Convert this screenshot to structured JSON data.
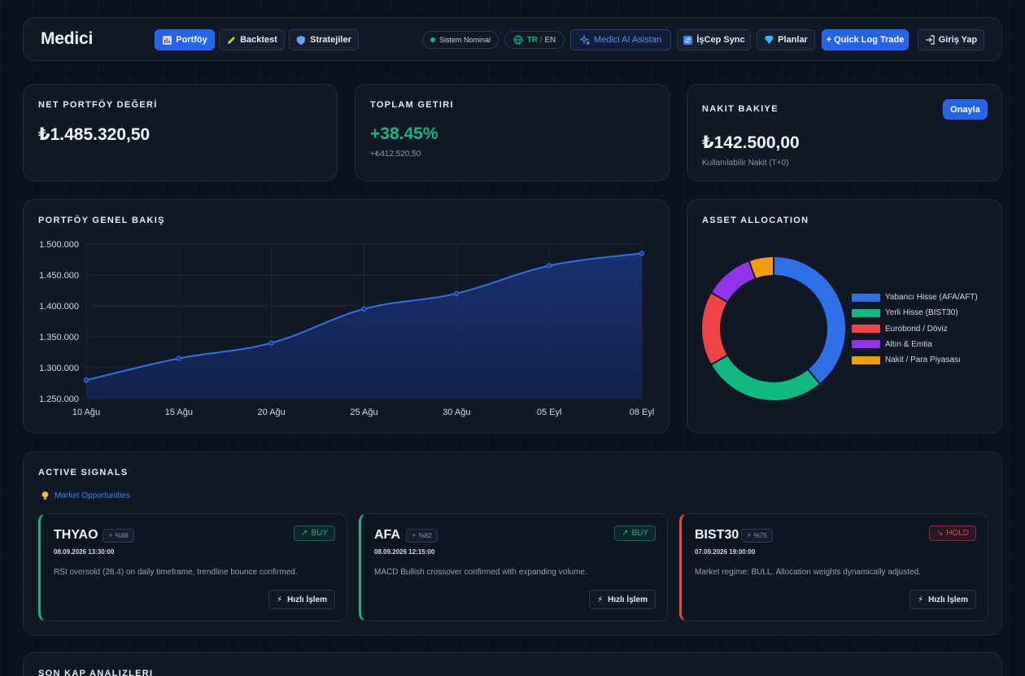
{
  "nav": {
    "brand": "Medici",
    "tabs": [
      {
        "label": "Portföy",
        "icon": "chart-icon"
      },
      {
        "label": "Backtest",
        "icon": "pencil-icon"
      },
      {
        "label": "Stratejiler",
        "icon": "shield-icon"
      }
    ],
    "status": "Sistem Nominal",
    "lang_tr": "TR",
    "lang_sep": " / ",
    "lang_en": "EN",
    "ai": "Medici AI Asistan",
    "sync": "İşCep Sync",
    "plans": "Planlar",
    "quick_log": "+ Quick Log Trade",
    "login": "Giriş Yap"
  },
  "kpi": {
    "net_label": "NET PORTFÖY DEĞERİ",
    "net_value": "₺1.485.320,50",
    "return_label": "TOPLAM GETIRI",
    "return_value": "+38.45%",
    "return_sub": "+₺412.520,50",
    "cash_label": "NAKIT BAKIYE",
    "cash_value": "₺142.500,00",
    "cash_sub": "Kullanılabilir Nakit (T+0)",
    "approve": "Onayla"
  },
  "overview": {
    "title": "PORTFÖY GENEL BAKIŞ"
  },
  "allocation": {
    "title": "ASSET ALLOCATION"
  },
  "signals": {
    "title": "ACTIVE SIGNALS",
    "subtitle": "Market Opportunities",
    "quick_label": "Hızlı İşlem",
    "items": [
      {
        "symbol": "THYAO",
        "confidence": "%88",
        "action": "BUY",
        "date": "08.09.2026 13:30:00",
        "desc": "RSI oversold (28.4) on daily timeframe, trendline bounce confirmed."
      },
      {
        "symbol": "AFA",
        "confidence": "%82",
        "action": "BUY",
        "date": "08.09.2026 12:15:00",
        "desc": "MACD Bullish crossover confirmed with expanding volume."
      },
      {
        "symbol": "BIST30",
        "confidence": "%75",
        "action": "HOLD",
        "date": "07.09.2026 19:00:00",
        "desc": "Market regime: BULL. Allocation weights dynamically adjusted."
      }
    ]
  },
  "kap": {
    "title": "SON KAP ANALIZLERI"
  },
  "colors": {
    "accent": "#2563eb",
    "positive": "#10b981",
    "negative": "#ef4444",
    "line": "#3b6fe0"
  },
  "chart_data": [
    {
      "type": "area",
      "title": "",
      "xlabel": "",
      "ylabel": "",
      "x": [
        "10 Ağu",
        "15 Ağu",
        "20 Ağu",
        "25 Ağu",
        "30 Ağu",
        "05 Eyl",
        "08 Eyl"
      ],
      "y": [
        1280000,
        1315000,
        1340000,
        1395000,
        1420000,
        1465000,
        1485000
      ],
      "y_ticks": [
        "1.500.000",
        "1.450.000",
        "1.400.000",
        "1.350.000",
        "1.300.000",
        "1.250.000"
      ],
      "ylim": [
        1250000,
        1500000
      ],
      "grid": true,
      "legend": "none"
    },
    {
      "type": "pie",
      "title": "",
      "categories": [
        "Yabancı Hisse (AFA/AFT)",
        "Yerli Hisse (BIST30)",
        "Eurobond / Döviz",
        "Altın & Emtia",
        "Nakit / Para Piyasası"
      ],
      "values": [
        35,
        25,
        15,
        10,
        5
      ],
      "colors": [
        "#2f6fe8",
        "#10b981",
        "#ef4444",
        "#9333ea",
        "#f59e0b"
      ],
      "donut": true,
      "legend": "right"
    }
  ]
}
